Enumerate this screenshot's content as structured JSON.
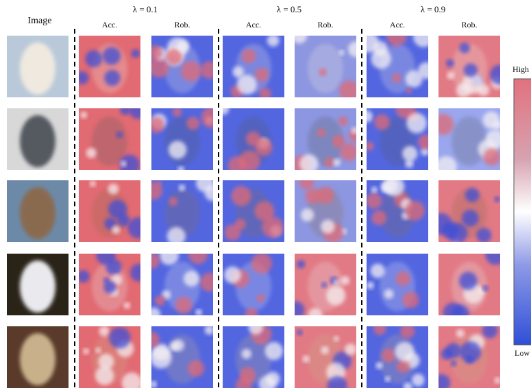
{
  "header": {
    "image_label": "Image",
    "groups": [
      {
        "lambda": "λ = 0.1",
        "columns": [
          "Acc.",
          "Rob."
        ]
      },
      {
        "lambda": "λ = 0.5",
        "columns": [
          "Acc.",
          "Rob."
        ]
      },
      {
        "lambda": "λ = 0.9",
        "columns": [
          "Acc.",
          "Rob."
        ]
      }
    ]
  },
  "colorbar": {
    "high": "High",
    "low": "Low"
  }
}
